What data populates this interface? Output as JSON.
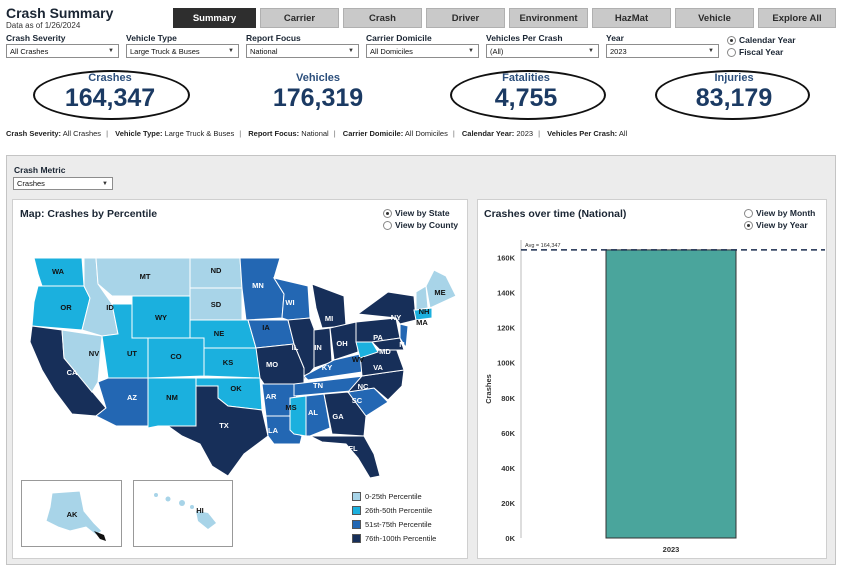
{
  "header": {
    "title": "Crash Summary",
    "subtitle": "Data as of 1/26/2024"
  },
  "tabs": [
    {
      "label": "Summary",
      "active": true
    },
    {
      "label": "Carrier",
      "active": false
    },
    {
      "label": "Crash",
      "active": false
    },
    {
      "label": "Driver",
      "active": false
    },
    {
      "label": "Environment",
      "active": false
    },
    {
      "label": "HazMat",
      "active": false
    },
    {
      "label": "Vehicle",
      "active": false
    },
    {
      "label": "Explore All",
      "active": false
    }
  ],
  "filters": {
    "crash_severity": {
      "label": "Crash Severity",
      "value": "All Crashes"
    },
    "vehicle_type": {
      "label": "Vehicle Type",
      "value": "Large Truck & Buses"
    },
    "report_focus": {
      "label": "Report Focus",
      "value": "National"
    },
    "carrier_domicile": {
      "label": "Carrier Domicile",
      "value": "All Domiciles"
    },
    "vehicles_per_crash": {
      "label": "Vehicles Per Crash",
      "value": "(All)"
    },
    "year": {
      "label": "Year",
      "value": "2023"
    }
  },
  "year_mode": {
    "calendar": "Calendar Year",
    "fiscal": "Fiscal Year",
    "selected": "calendar"
  },
  "kpis": {
    "crashes": {
      "label": "Crashes",
      "value": "164,347"
    },
    "vehicles": {
      "label": "Vehicles",
      "value": "176,319"
    },
    "fatalities": {
      "label": "Fatalities",
      "value": "4,755"
    },
    "injuries": {
      "label": "Injuries",
      "value": "83,179"
    }
  },
  "summary": {
    "crash_severity_label": "Crash Severity:",
    "crash_severity_value": "All Crashes",
    "vehicle_type_label": "Vehicle Type:",
    "vehicle_type_value": "Large Truck & Buses",
    "report_focus_label": "Report Focus:",
    "report_focus_value": "National",
    "carrier_domicile_label": "Carrier Domicile:",
    "carrier_domicile_value": "All Domiciles",
    "calendar_year_label": "Calendar Year:",
    "calendar_year_value": "2023",
    "vehicles_per_crash_label": "Vehicles Per Crash:",
    "vehicles_per_crash_value": "All",
    "separator": "|"
  },
  "crash_metric": {
    "label": "Crash Metric",
    "value": "Crashes"
  },
  "map_panel": {
    "title": "Map: Crashes by Percentile",
    "view_state": "View by State",
    "view_county": "View by County",
    "selected": "state",
    "legend": [
      {
        "label": "0-25th Percentile",
        "color": "#a8d4e8"
      },
      {
        "label": "26th-50th Percentile",
        "color": "#1bb0de"
      },
      {
        "label": "51st-75th Percentile",
        "color": "#2367b3"
      },
      {
        "label": "76th-100th Percentile",
        "color": "#172f59"
      }
    ],
    "states": [
      "WA",
      "OR",
      "CA",
      "NV",
      "ID",
      "MT",
      "WY",
      "UT",
      "AZ",
      "CO",
      "NM",
      "ND",
      "SD",
      "NE",
      "KS",
      "OK",
      "TX",
      "MN",
      "IA",
      "MO",
      "AR",
      "LA",
      "WI",
      "IL",
      "MS",
      "AL",
      "MI",
      "IN",
      "KY",
      "TN",
      "OH",
      "GA",
      "FL",
      "SC",
      "NC",
      "VA",
      "WV",
      "PA",
      "NY",
      "MD",
      "NJ",
      "MA",
      "NH",
      "ME",
      "AK",
      "HI"
    ]
  },
  "time_panel": {
    "title": "Crashes over time (National)",
    "view_month": "View by Month",
    "view_year": "View by Year",
    "selected": "year"
  },
  "chart_data": {
    "type": "bar",
    "title": "Crashes over time (National)",
    "categories": [
      "2023"
    ],
    "values": [
      164347
    ],
    "ylabel": "Crashes",
    "xlabel": "",
    "ylim": [
      0,
      170000
    ],
    "yticks": [
      "0K",
      "20K",
      "40K",
      "60K",
      "80K",
      "100K",
      "120K",
      "140K",
      "160K"
    ],
    "reference_line": {
      "label": "Avg = 164,347",
      "value": 164347
    },
    "bar_color": "#4aa59c",
    "grid": false
  }
}
